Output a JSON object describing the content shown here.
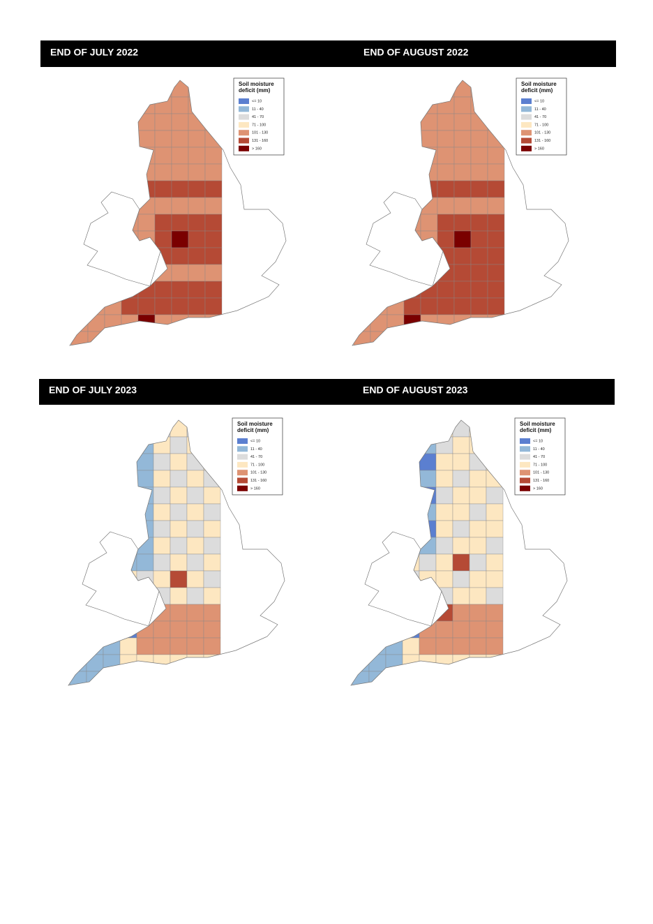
{
  "panels": [
    {
      "title": "END OF JULY 2022"
    },
    {
      "title": "END OF AUGUST 2022"
    },
    {
      "title": "END OF JULY 2023"
    },
    {
      "title": "END OF AUGUST 2023"
    }
  ],
  "legend": {
    "title_lines": [
      "Soil moisture",
      "deficit (mm)"
    ],
    "items": [
      {
        "label": "<= 10",
        "color": "#5b7fd0"
      },
      {
        "label": "11 - 40",
        "color": "#93b8d8"
      },
      {
        "label": "41 - 70",
        "color": "#dcdcdc"
      },
      {
        "label": "71 - 100",
        "color": "#fde7c1"
      },
      {
        "label": "101 - 130",
        "color": "#de9373"
      },
      {
        "label": "131 - 160",
        "color": "#b54a35"
      },
      {
        "label": "> 160",
        "color": "#7a0000"
      }
    ]
  }
}
